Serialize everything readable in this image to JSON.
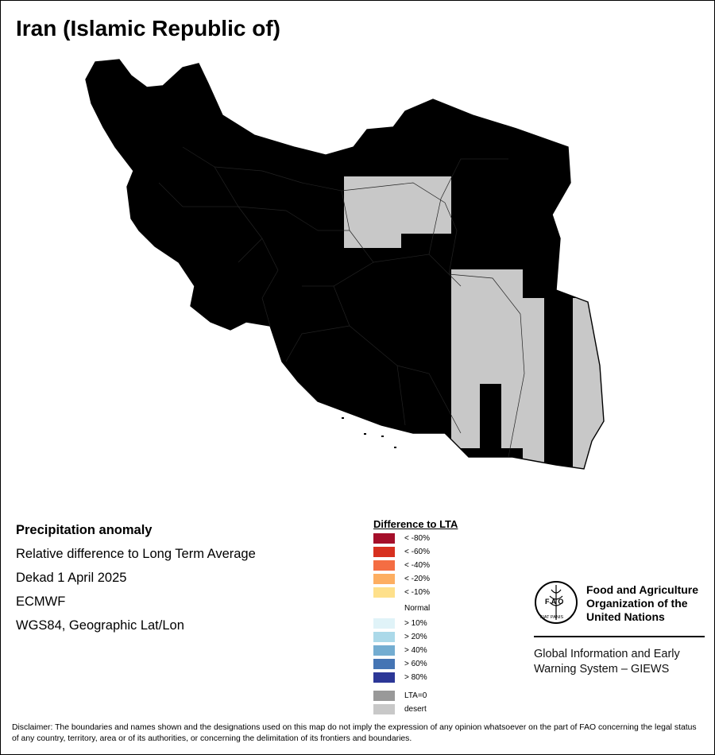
{
  "title": "Iran (Islamic Republic of)",
  "info": {
    "heading": "Precipitation anomaly",
    "line1": "Relative difference to Long Term Average",
    "line2": "Dekad 1 April 2025",
    "line3": "ECMWF",
    "line4": "WGS84, Geographic Lat/Lon"
  },
  "legend": {
    "title": "Difference to LTA",
    "items": [
      {
        "label": "< -80%",
        "color": "#a50f2a"
      },
      {
        "label": "< -60%",
        "color": "#d7301f"
      },
      {
        "label": "< -40%",
        "color": "#f46d43"
      },
      {
        "label": "< -20%",
        "color": "#fdae61"
      },
      {
        "label": "< -10%",
        "color": "#fee08b"
      },
      {
        "label": "Normal",
        "color": "#ffffff"
      },
      {
        "label": "> 10%",
        "color": "#e0f3f8"
      },
      {
        "label": "> 20%",
        "color": "#abd9e9"
      },
      {
        "label": "> 40%",
        "color": "#74add1"
      },
      {
        "label": "> 60%",
        "color": "#4575b4"
      },
      {
        "label": "> 80%",
        "color": "#2c3797"
      },
      {
        "label": "LTA=0",
        "color": "#999999"
      },
      {
        "label": "desert",
        "color": "#c8c8c8"
      }
    ]
  },
  "logo": {
    "org_name": "Food and Agriculture Organization of the United Nations",
    "emblem_text": "FAO",
    "emblem_motto": "FIAT PANIS",
    "system": "Global Information and Early Warning System – GIEWS"
  },
  "disclaimer": "Disclaimer: The boundaries and names shown and the designations used on this map do not imply the expression of any opinion whatsoever on the part of FAO concerning the legal status of any country, territory, area or of its authorities, or concerning the delimitation of its frontiers and boundaries."
}
